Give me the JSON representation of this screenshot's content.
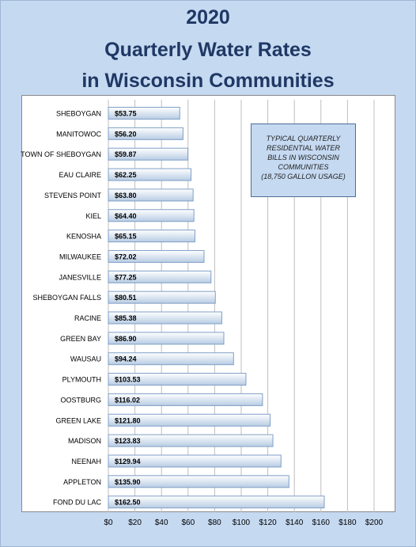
{
  "title": {
    "line1": "2020",
    "line2": "Quarterly Water Rates",
    "line3": "in Wisconsin Communities"
  },
  "annotation": {
    "line1": "TYPICAL QUARTERLY",
    "line2": "RESIDENTIAL WATER",
    "line3": "BILLS IN WISCONSIN",
    "line4": "COMMUNITIES",
    "line5": "(18,750 GALLON USAGE)"
  },
  "colors": {
    "background": "#c5d9f1",
    "title": "#1f3864",
    "bar_fill_light": "#ffffff",
    "bar_fill_dark": "#b8cce4",
    "bar_stroke": "#7f9fc7",
    "grid": "#bfbfbf"
  },
  "chart_data": {
    "type": "bar",
    "orientation": "horizontal",
    "categories": [
      "SHEBOYGAN",
      "MANITOWOC",
      "TOWN OF SHEBOYGAN",
      "EAU CLAIRE",
      "STEVENS POINT",
      "KIEL",
      "KENOSHA",
      "MILWAUKEE",
      "JANESVILLE",
      "SHEBOYGAN FALLS",
      "RACINE",
      "GREEN BAY",
      "WAUSAU",
      "PLYMOUTH",
      "OOSTBURG",
      "GREEN LAKE",
      "MADISON",
      "NEENAH",
      "APPLETON",
      "FOND DU LAC"
    ],
    "values": [
      53.75,
      56.2,
      59.87,
      62.25,
      63.8,
      64.4,
      65.15,
      72.02,
      77.25,
      80.51,
      85.38,
      86.9,
      94.24,
      103.53,
      116.02,
      121.8,
      123.83,
      129.94,
      135.9,
      162.5
    ],
    "value_labels": [
      "$53.75",
      "$56.20",
      "$59.87",
      "$62.25",
      "$63.80",
      "$64.40",
      "$65.15",
      "$72.02",
      "$77.25",
      "$80.51",
      "$85.38",
      "$86.90",
      "$94.24",
      "$103.53",
      "$116.02",
      "$121.80",
      "$123.83",
      "$129.94",
      "$135.90",
      "$162.50"
    ],
    "xticks": [
      "$0",
      "$20",
      "$40",
      "$60",
      "$80",
      "$100",
      "$120",
      "$140",
      "$160",
      "$180",
      "$200"
    ],
    "xlim": [
      0,
      200
    ],
    "grid": true,
    "xlabel": "",
    "ylabel": ""
  }
}
